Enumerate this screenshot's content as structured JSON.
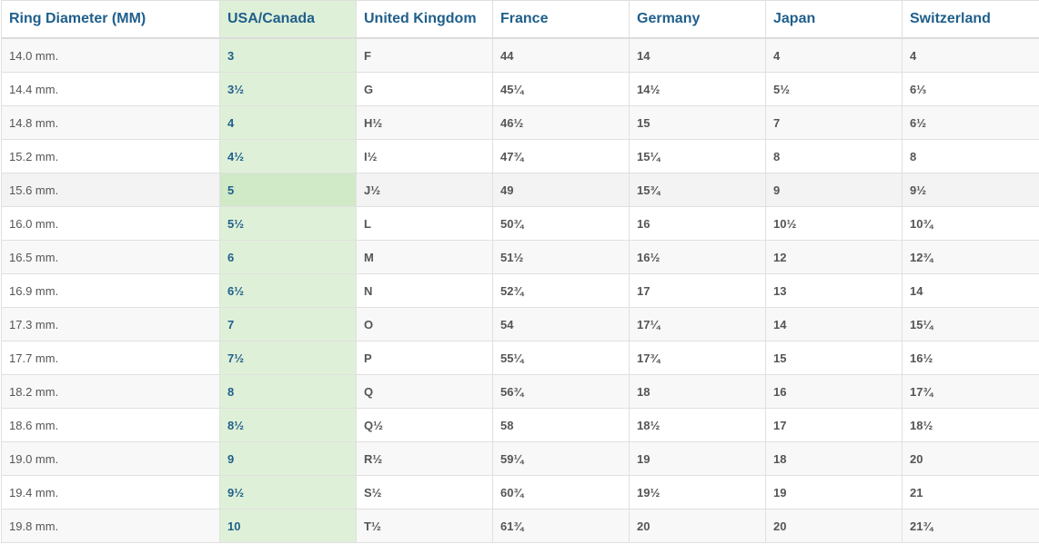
{
  "table": {
    "headers": [
      "Ring Diameter (MM)",
      "USA/Canada",
      "United Kingdom",
      "France",
      "Germany",
      "Japan",
      "Switzerland"
    ],
    "highlighted_column": "USA/Canada",
    "hovered_row": 4,
    "rows": [
      [
        "14.0 mm.",
        "3",
        "F",
        "44",
        "14",
        "4",
        "4"
      ],
      [
        "14.4 mm.",
        "3½",
        "G",
        "45¼",
        "14½",
        "5½",
        "6⅓"
      ],
      [
        "14.8 mm.",
        "4",
        "H½",
        "46½",
        "15",
        "7",
        "6½"
      ],
      [
        "15.2 mm.",
        "4½",
        "I½",
        "47¾",
        "15¼",
        "8",
        "8"
      ],
      [
        "15.6 mm.",
        "5",
        "J½",
        "49",
        "15¾",
        "9",
        "9½"
      ],
      [
        "16.0 mm.",
        "5½",
        "L",
        "50¾",
        "16",
        "10½",
        "10¾"
      ],
      [
        "16.5 mm.",
        "6",
        "M",
        "51½",
        "16½",
        "12",
        "12¾"
      ],
      [
        "16.9 mm.",
        "6½",
        "N",
        "52¾",
        "17",
        "13",
        "14"
      ],
      [
        "17.3 mm.",
        "7",
        "O",
        "54",
        "17¼",
        "14",
        "15¼"
      ],
      [
        "17.7 mm.",
        "7½",
        "P",
        "55¼",
        "17¾",
        "15",
        "16½"
      ],
      [
        "18.2 mm.",
        "8",
        "Q",
        "56¾",
        "18",
        "16",
        "17¾"
      ],
      [
        "18.6 mm.",
        "8½",
        "Q½",
        "58",
        "18½",
        "17",
        "18½"
      ],
      [
        "19.0 mm.",
        "9",
        "R½",
        "59¼",
        "19",
        "18",
        "20"
      ],
      [
        "19.4 mm.",
        "9½",
        "S½",
        "60¾",
        "19½",
        "19",
        "21"
      ],
      [
        "19.8 mm.",
        "10",
        "T½",
        "61¾",
        "20",
        "20",
        "21¾"
      ]
    ],
    "colors": {
      "header_text": "#1f5f8b",
      "highlight_column": "#dff0d8",
      "highlight_hover": "#d0e9c6",
      "stripe": "#f8f8f8"
    }
  }
}
